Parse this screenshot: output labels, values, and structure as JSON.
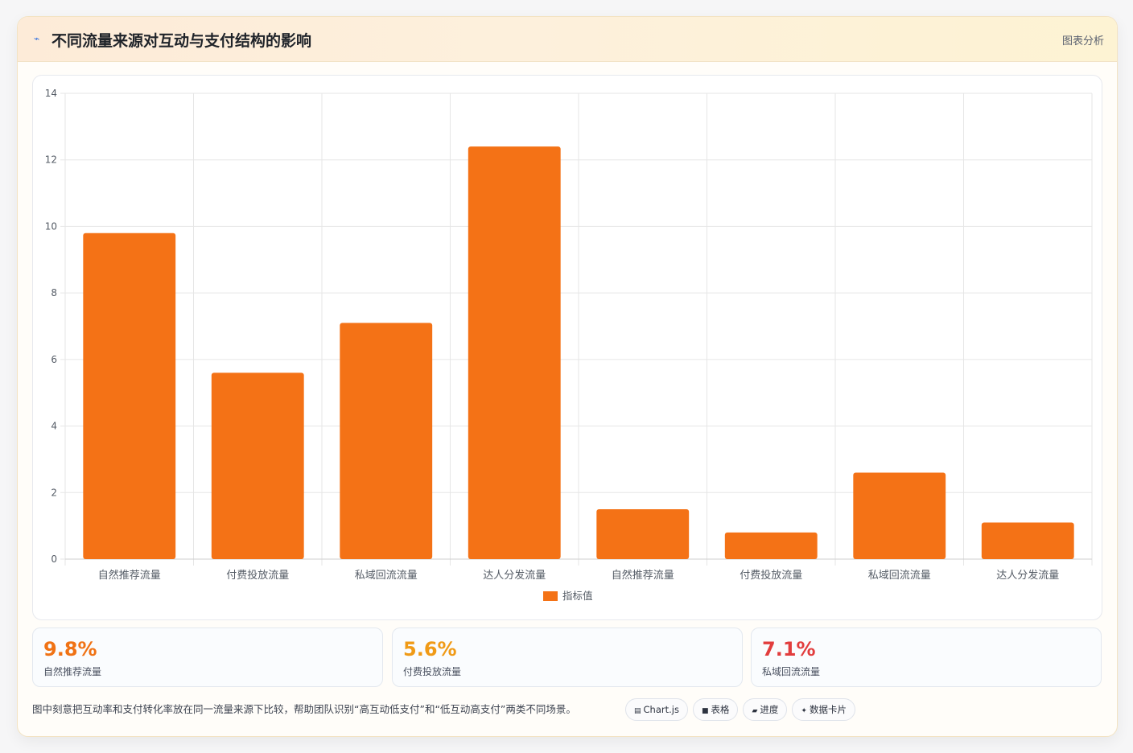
{
  "header": {
    "icon": "lightning-icon",
    "title": "不同流量来源对互动与支付结构的影响",
    "tag": "图表分析"
  },
  "colors": {
    "bar": "#f47216",
    "grid": "#e6e6e6",
    "axis_text": "#555c66",
    "stat_orange": "#f07214",
    "stat_amber": "#f09a16",
    "stat_red": "#e23d3d"
  },
  "chart_data": {
    "type": "bar",
    "categories": [
      "自然推荐流量",
      "付费投放流量",
      "私域回流流量",
      "达人分发流量",
      "自然推荐流量",
      "付费投放流量",
      "私域回流流量",
      "达人分发流量"
    ],
    "series": [
      {
        "name": "指标值",
        "values": [
          9.8,
          5.6,
          7.1,
          12.4,
          1.5,
          0.8,
          2.6,
          1.1
        ]
      }
    ],
    "ylim": [
      0,
      14
    ],
    "yticks": [
      0,
      2,
      4,
      6,
      8,
      10,
      12,
      14
    ],
    "grid": true,
    "legend": "bottom"
  },
  "stats": [
    {
      "value": "9.8%",
      "label": "自然推荐流量",
      "color": "#f07214"
    },
    {
      "value": "5.6%",
      "label": "付费投放流量",
      "color": "#f09a16"
    },
    {
      "value": "7.1%",
      "label": "私域回流流量",
      "color": "#e23d3d"
    }
  ],
  "footer": {
    "note": "图中刻意把互动率和支付转化率放在同一流量来源下比较，帮助团队识别“高互动低支付”和“低互动高支付”两类不同场景。",
    "pills": [
      {
        "icon": "chart-icon",
        "glyph": "▤",
        "label": "Chart.js"
      },
      {
        "icon": "table-icon",
        "glyph": "■",
        "label": "表格"
      },
      {
        "icon": "progress-icon",
        "glyph": "▰",
        "label": "进度"
      },
      {
        "icon": "card-icon",
        "glyph": "✦",
        "label": "数据卡片"
      }
    ]
  }
}
